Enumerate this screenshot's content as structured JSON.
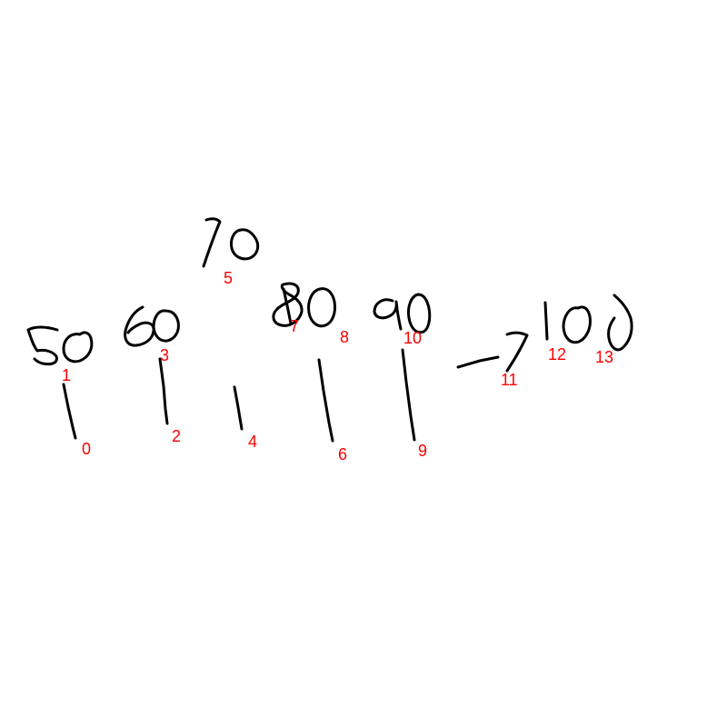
{
  "colors": {
    "ink": "#000000",
    "label": "#ff0000",
    "background": "#ffffff"
  },
  "strokes": [
    {
      "id": "0",
      "label": "0"
    },
    {
      "id": "1",
      "label": "1"
    },
    {
      "id": "2",
      "label": "2"
    },
    {
      "id": "3",
      "label": "3"
    },
    {
      "id": "4",
      "label": "4"
    },
    {
      "id": "5",
      "label": "5"
    },
    {
      "id": "6",
      "label": "6"
    },
    {
      "id": "7",
      "label": "7"
    },
    {
      "id": "8",
      "label": "8"
    },
    {
      "id": "9",
      "label": "9"
    },
    {
      "id": "10",
      "label": "10"
    },
    {
      "id": "11",
      "label": "11"
    },
    {
      "id": "12",
      "label": "12"
    },
    {
      "id": "13",
      "label": "13"
    }
  ]
}
